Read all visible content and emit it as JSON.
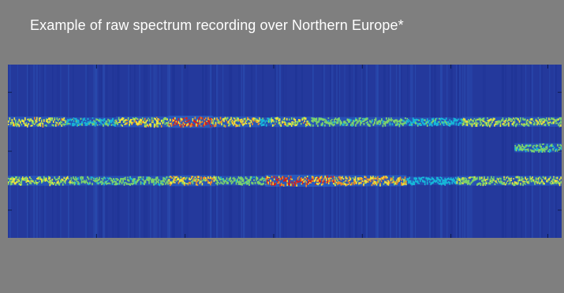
{
  "caption": "Example of raw spectrum recording over Northern Europe*",
  "chart_data": {
    "type": "heatmap",
    "title": "Example of raw spectrum recording over Northern Europe*",
    "xlabel": "",
    "ylabel": "",
    "xlim": [
      0,
      100
    ],
    "ylim": [
      0,
      100
    ],
    "colormap": [
      "#1e3a9c",
      "#1f6fd0",
      "#17b6d8",
      "#7ed36a",
      "#f3e33a",
      "#f08a24",
      "#d21f1f"
    ],
    "background_color": "#24399c",
    "x_ticks": [
      16,
      32,
      48,
      64,
      80,
      97.5
    ],
    "y_ticks": [
      16,
      50,
      84
    ],
    "bands": [
      {
        "center_y": 67,
        "segments": [
          {
            "x0": 0,
            "x1": 10.5,
            "intensity": 0.55
          },
          {
            "x0": 10.5,
            "x1": 19.5,
            "intensity": 0.22
          },
          {
            "x0": 19.5,
            "x1": 29,
            "intensity": 0.6
          },
          {
            "x0": 29,
            "x1": 37,
            "intensity": 0.92
          },
          {
            "x0": 37,
            "x1": 45.5,
            "intensity": 0.62
          },
          {
            "x0": 45.5,
            "x1": 47.5,
            "intensity": 0.2
          },
          {
            "x0": 47.5,
            "x1": 55,
            "intensity": 0.55
          },
          {
            "x0": 55,
            "x1": 72,
            "intensity": 0.35
          },
          {
            "x0": 72,
            "x1": 80,
            "intensity": 0.2
          },
          {
            "x0": 80,
            "x1": 82,
            "intensity": 0.08
          },
          {
            "x0": 82,
            "x1": 100,
            "intensity": 0.42
          }
        ]
      },
      {
        "center_y": 33,
        "segments": [
          {
            "x0": 0,
            "x1": 11.5,
            "intensity": 0.45
          },
          {
            "x0": 11.5,
            "x1": 29,
            "intensity": 0.35
          },
          {
            "x0": 29,
            "x1": 37.5,
            "intensity": 0.65
          },
          {
            "x0": 37.5,
            "x1": 46.5,
            "intensity": 0.35
          },
          {
            "x0": 46.5,
            "x1": 59,
            "intensity": 0.88
          },
          {
            "x0": 59,
            "x1": 72,
            "intensity": 0.7
          },
          {
            "x0": 72,
            "x1": 81,
            "intensity": 0.1
          },
          {
            "x0": 81,
            "x1": 89.5,
            "intensity": 0.4
          },
          {
            "x0": 89.5,
            "x1": 100,
            "intensity": 0.45
          }
        ]
      },
      {
        "center_y": 52,
        "segments": [
          {
            "x0": 91.5,
            "x1": 100,
            "intensity": 0.3
          }
        ]
      }
    ]
  }
}
